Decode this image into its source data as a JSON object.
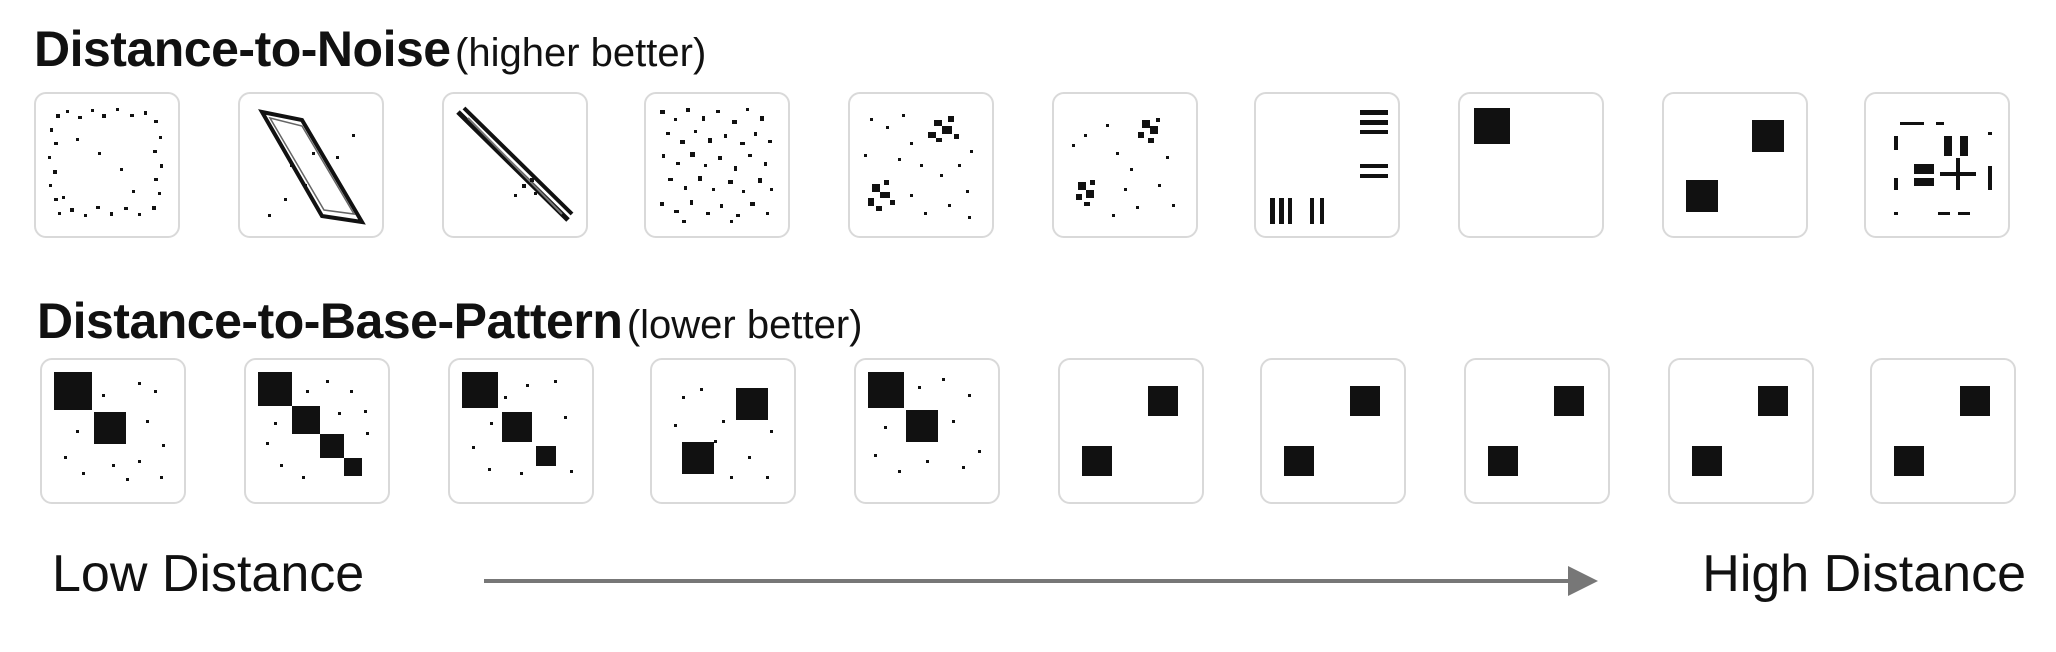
{
  "rows": [
    {
      "id": "noise",
      "title": "Distance-to-Noise",
      "note": "(higher better)"
    },
    {
      "id": "base",
      "title": "Distance-to-Base-Pattern",
      "note": "(lower better)"
    }
  ],
  "axis": {
    "low_label": "Low Distance",
    "high_label": "High Distance"
  },
  "colors": {
    "arrow": "#777777",
    "tile_border": "#d9d9d9",
    "ink": "#111111"
  }
}
